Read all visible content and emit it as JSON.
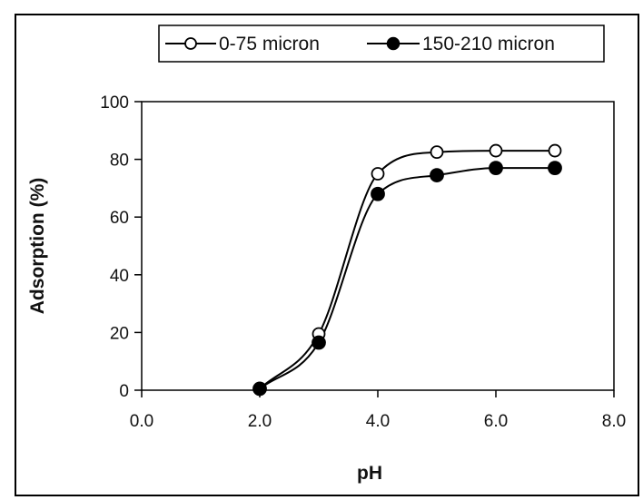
{
  "chart_data": {
    "type": "line",
    "xlabel": "pH",
    "ylabel": "Adsorption (%)",
    "xlim": [
      0,
      8
    ],
    "ylim": [
      0,
      100
    ],
    "xticks": [
      "0.0",
      "2.0",
      "4.0",
      "6.0",
      "8.0"
    ],
    "yticks": [
      "0",
      "20",
      "40",
      "60",
      "80",
      "100"
    ],
    "grid": false,
    "legend_position": "top",
    "series": [
      {
        "name": "0-75 micron",
        "marker": "open-circle",
        "color": "#000000",
        "x": [
          2,
          3,
          4,
          5,
          6,
          7
        ],
        "y": [
          0.5,
          19.5,
          75,
          82.5,
          83,
          83
        ]
      },
      {
        "name": "150-210 micron",
        "marker": "filled-circle",
        "color": "#000000",
        "x": [
          2,
          3,
          4,
          5,
          6,
          7
        ],
        "y": [
          0.5,
          16.5,
          68,
          74.5,
          77,
          77
        ]
      }
    ]
  }
}
